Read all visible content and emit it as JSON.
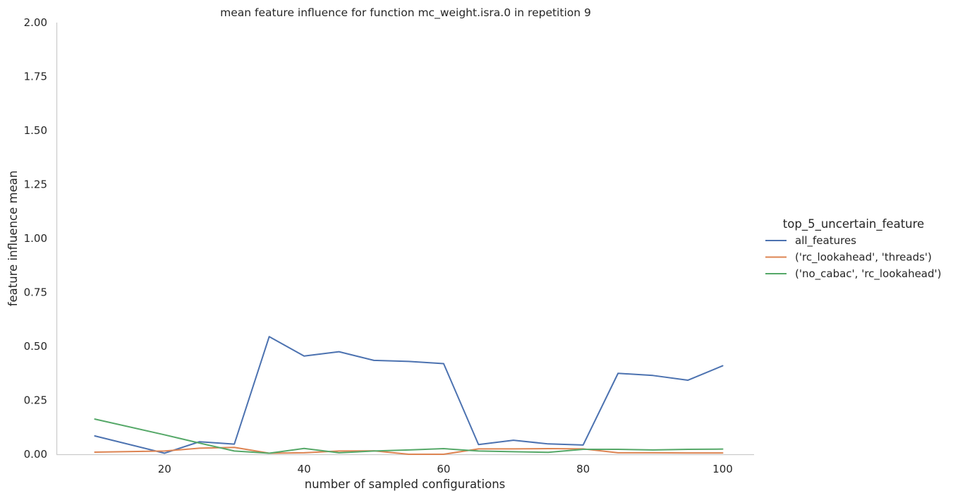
{
  "chart_data": {
    "type": "line",
    "title": "mean feature influence for function mc_weight.isra.0 in repetition 9",
    "xlabel": "number of sampled configurations",
    "ylabel": "feature influence mean",
    "xlim": [
      4.5,
      104.5
    ],
    "ylim": [
      0,
      2.0
    ],
    "xticks": [
      20,
      40,
      60,
      80,
      100
    ],
    "yticks": [
      0.0,
      0.25,
      0.5,
      0.75,
      1.0,
      1.25,
      1.5,
      1.75,
      2.0
    ],
    "ytick_labels": [
      "0.00",
      "0.25",
      "0.50",
      "0.75",
      "1.00",
      "1.25",
      "1.50",
      "1.75",
      "2.00"
    ],
    "xtick_labels": [
      "20",
      "40",
      "60",
      "80",
      "100"
    ],
    "grid": false,
    "legend": {
      "title": "top_5_uncertain_feature",
      "placement": "right"
    },
    "x": [
      10,
      20,
      25,
      30,
      35,
      40,
      45,
      50,
      55,
      60,
      65,
      70,
      75,
      80,
      85,
      90,
      95,
      100
    ],
    "series": [
      {
        "name": "all_features",
        "color": "#4c72b0",
        "values": [
          0.085,
          0.005,
          0.058,
          0.047,
          0.545,
          0.455,
          0.475,
          0.435,
          0.43,
          0.42,
          0.045,
          0.065,
          0.048,
          0.043,
          0.375,
          0.365,
          0.343,
          0.41
        ]
      },
      {
        "name": "('rc_lookahead', 'threads')",
        "color": "#dd8452",
        "values": [
          0.01,
          0.015,
          0.028,
          0.032,
          0.005,
          0.007,
          0.015,
          0.016,
          0.0,
          0.0,
          0.025,
          0.025,
          0.026,
          0.025,
          0.007,
          0.007,
          0.006,
          0.006
        ]
      },
      {
        "name": "('no_cabac', 'rc_lookahead')",
        "color": "#55a868",
        "values": [
          0.163,
          0.09,
          0.052,
          0.015,
          0.005,
          0.027,
          0.007,
          0.015,
          0.02,
          0.026,
          0.015,
          0.012,
          0.009,
          0.023,
          0.023,
          0.02,
          0.023,
          0.024
        ]
      }
    ]
  }
}
